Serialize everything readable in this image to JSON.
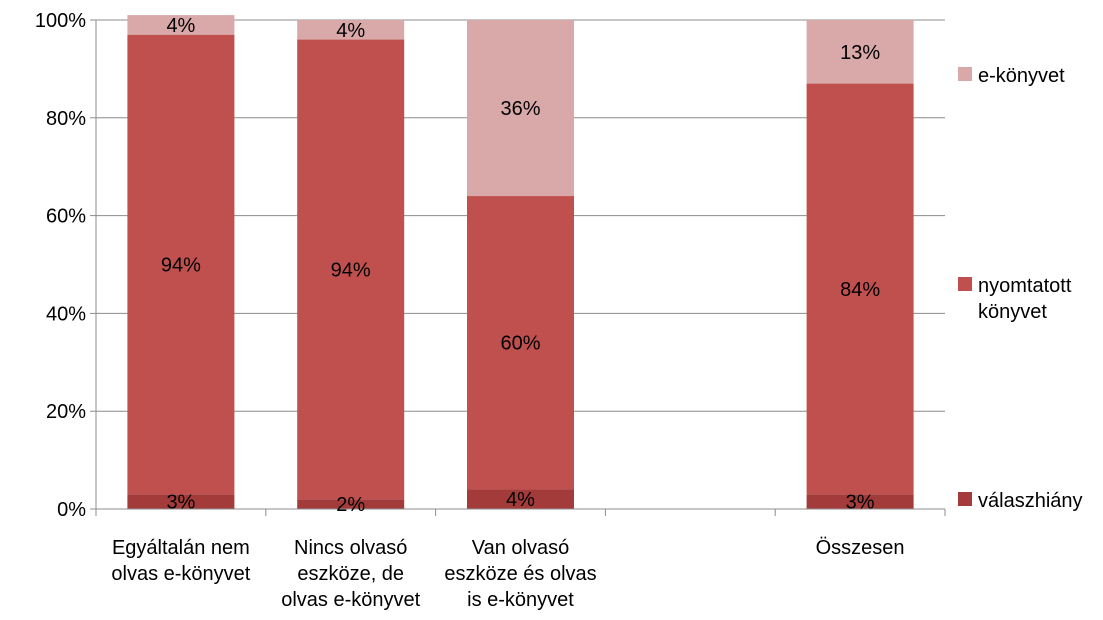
{
  "chart_data": {
    "type": "bar",
    "stacked": true,
    "percent_axis": true,
    "categories": [
      [
        "Egyáltalán nem",
        "olvas e-könyvet"
      ],
      [
        "Nincs olvasó",
        "eszköze, de",
        "olvas e-könyvet"
      ],
      [
        "Van olvasó",
        "eszköze és olvas",
        "is e-könyvet"
      ],
      [],
      [
        "Összesen"
      ]
    ],
    "series": [
      {
        "name": "válaszhiány",
        "color": "#A33B3B",
        "values": [
          3,
          2,
          4,
          null,
          3
        ]
      },
      {
        "name": "nyomtatott könyvet",
        "legend_lines": [
          "nyomtatott",
          "könyvet"
        ],
        "color": "#C0504D",
        "values": [
          94,
          94,
          60,
          null,
          84
        ]
      },
      {
        "name": "e-könyvet",
        "color": "#D9A9AA",
        "values": [
          4,
          4,
          36,
          null,
          13
        ]
      }
    ],
    "data_labels": [
      [
        "3%",
        "2%",
        "4%",
        "",
        "3%"
      ],
      [
        "94%",
        "94%",
        "60%",
        "",
        "84%"
      ],
      [
        "4%",
        "4%",
        "36%",
        "",
        "13%"
      ]
    ],
    "y_ticks": [
      "0%",
      "20%",
      "40%",
      "60%",
      "80%",
      "100%"
    ],
    "ylim": [
      0,
      100
    ],
    "grid": true,
    "legend_position": "right"
  }
}
